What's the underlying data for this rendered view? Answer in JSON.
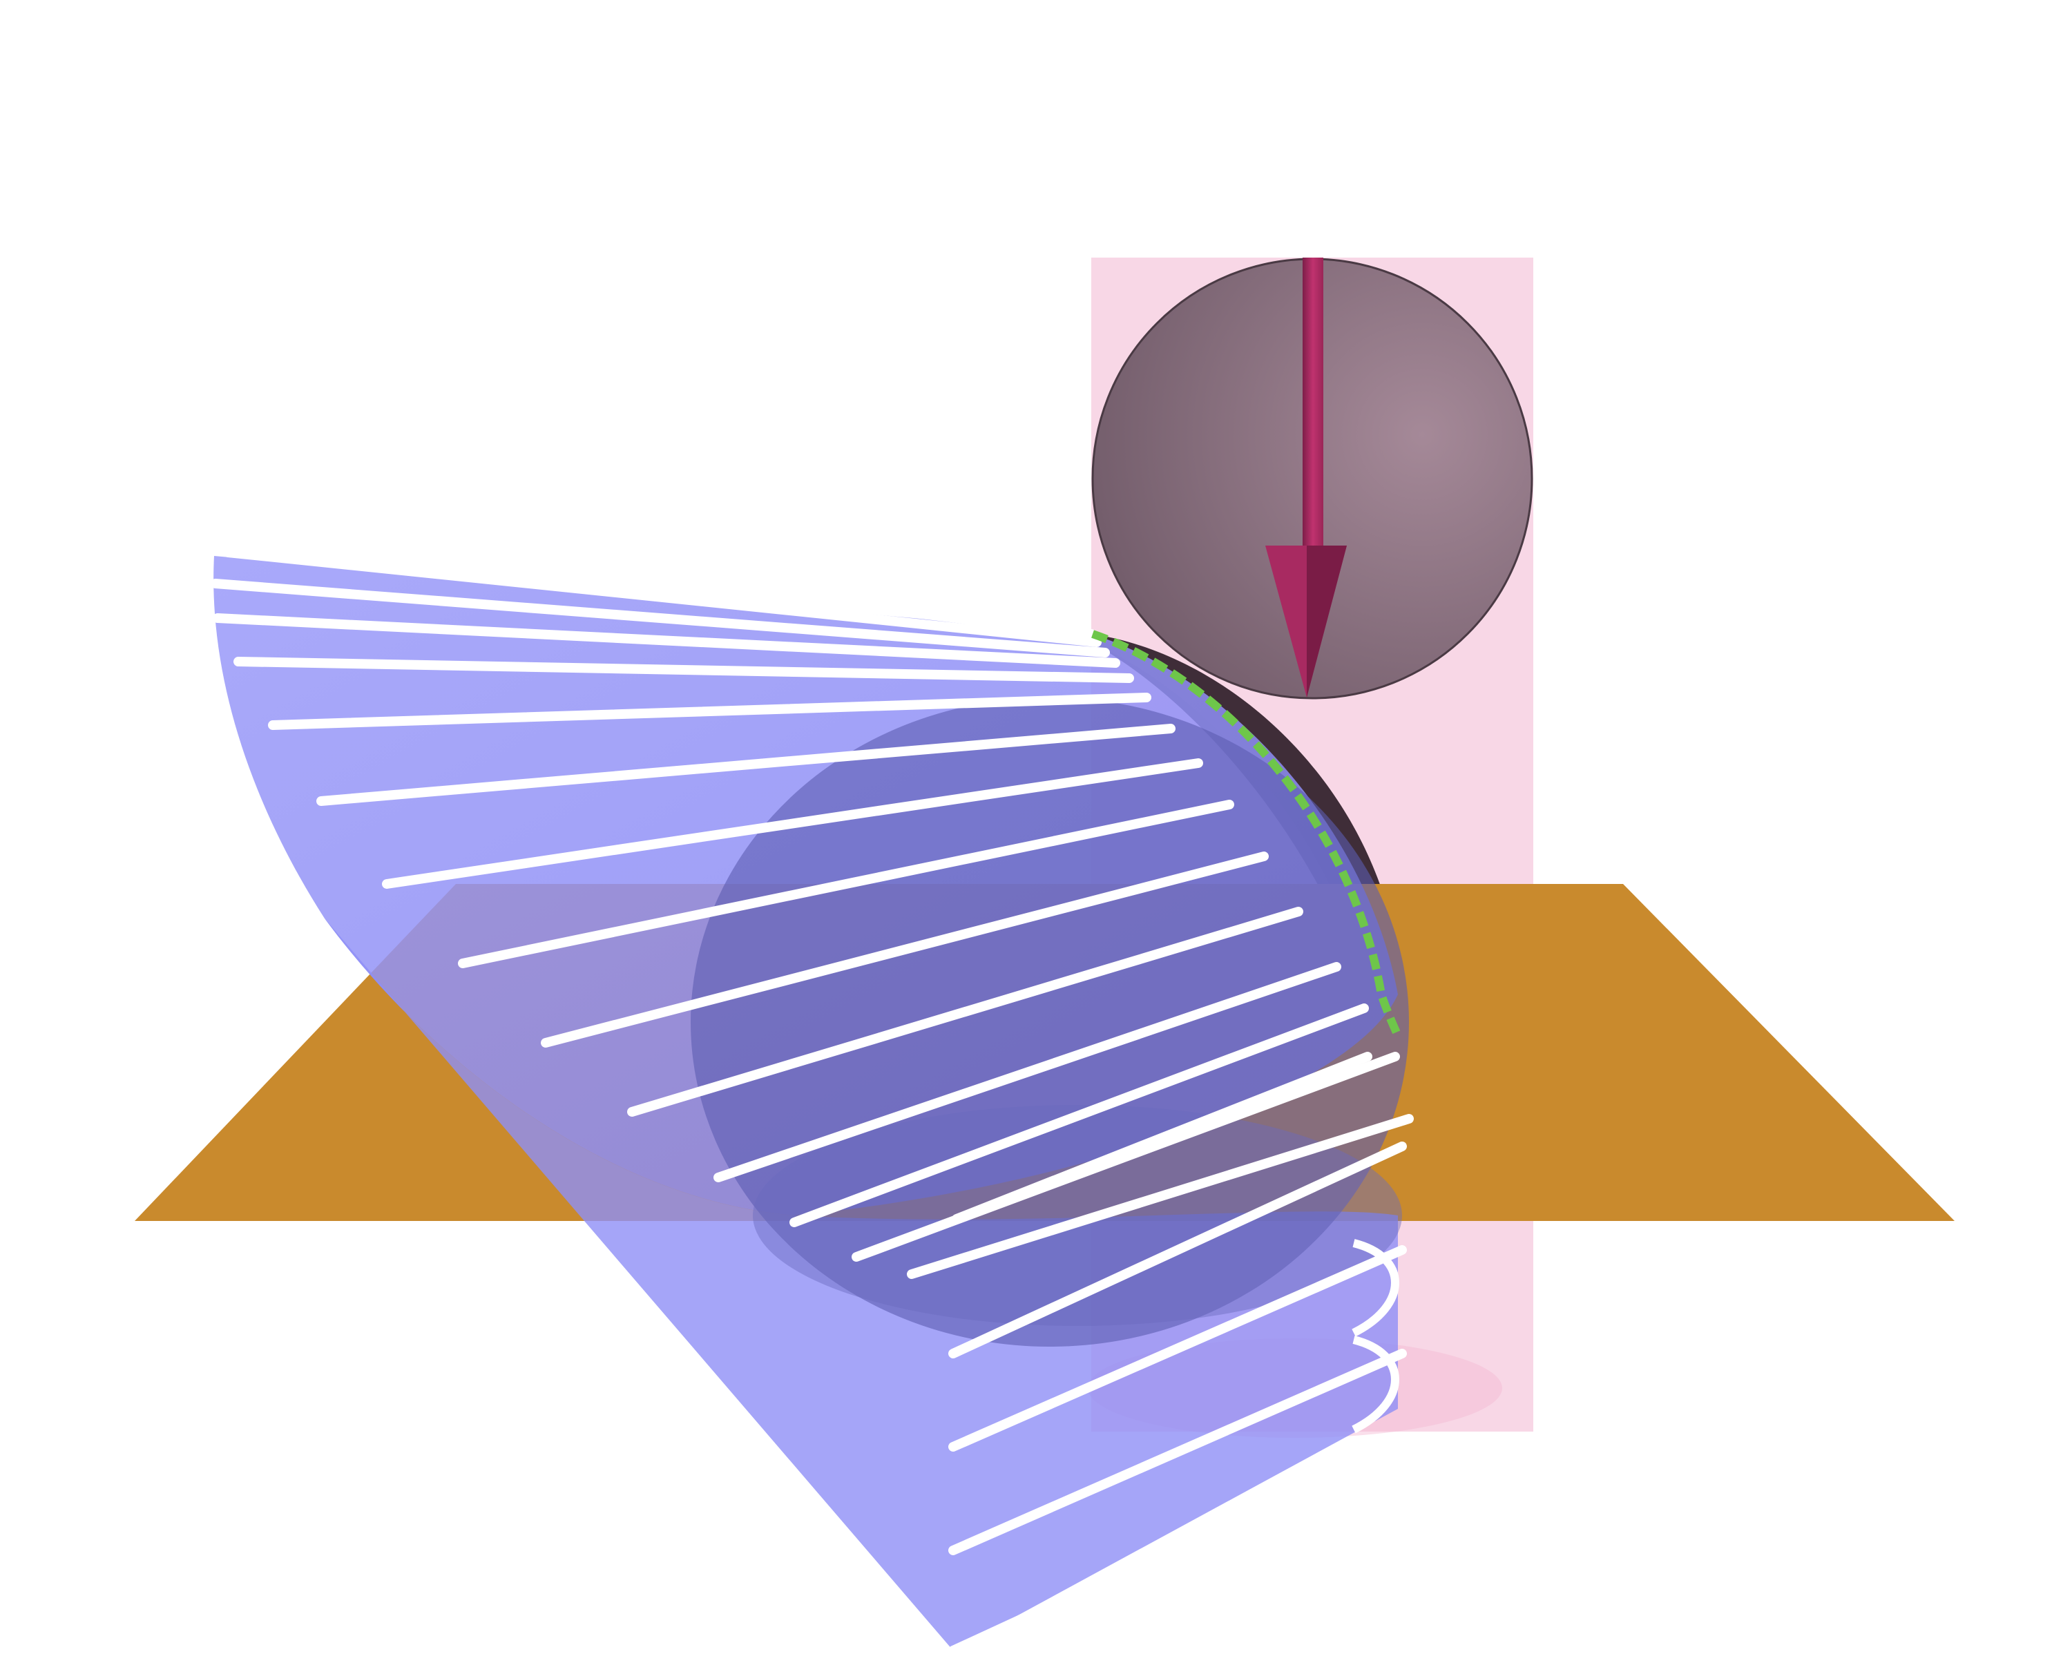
{
  "scene": {
    "background": "#ffffff",
    "colors": {
      "cylinder": "#f3b7d2",
      "sphere_light": "#9a7e8b",
      "sphere_dark": "#6e5866",
      "sphere_back_rim": "#3e2c37",
      "arrow": "#c0326f",
      "arrow_dark": "#7a1c46",
      "plane": "#c98a2d",
      "cone_surface": "#8f8ff6",
      "cone_shadow": "#6161b5",
      "ruling_line": "#ffffff",
      "contact_curve": "#6ec64a"
    },
    "objects": [
      {
        "name": "light-cylinder"
      },
      {
        "name": "sphere"
      },
      {
        "name": "direction-arrow"
      },
      {
        "name": "ground-plane"
      },
      {
        "name": "shadow-cone"
      },
      {
        "name": "contact-curve"
      }
    ]
  }
}
